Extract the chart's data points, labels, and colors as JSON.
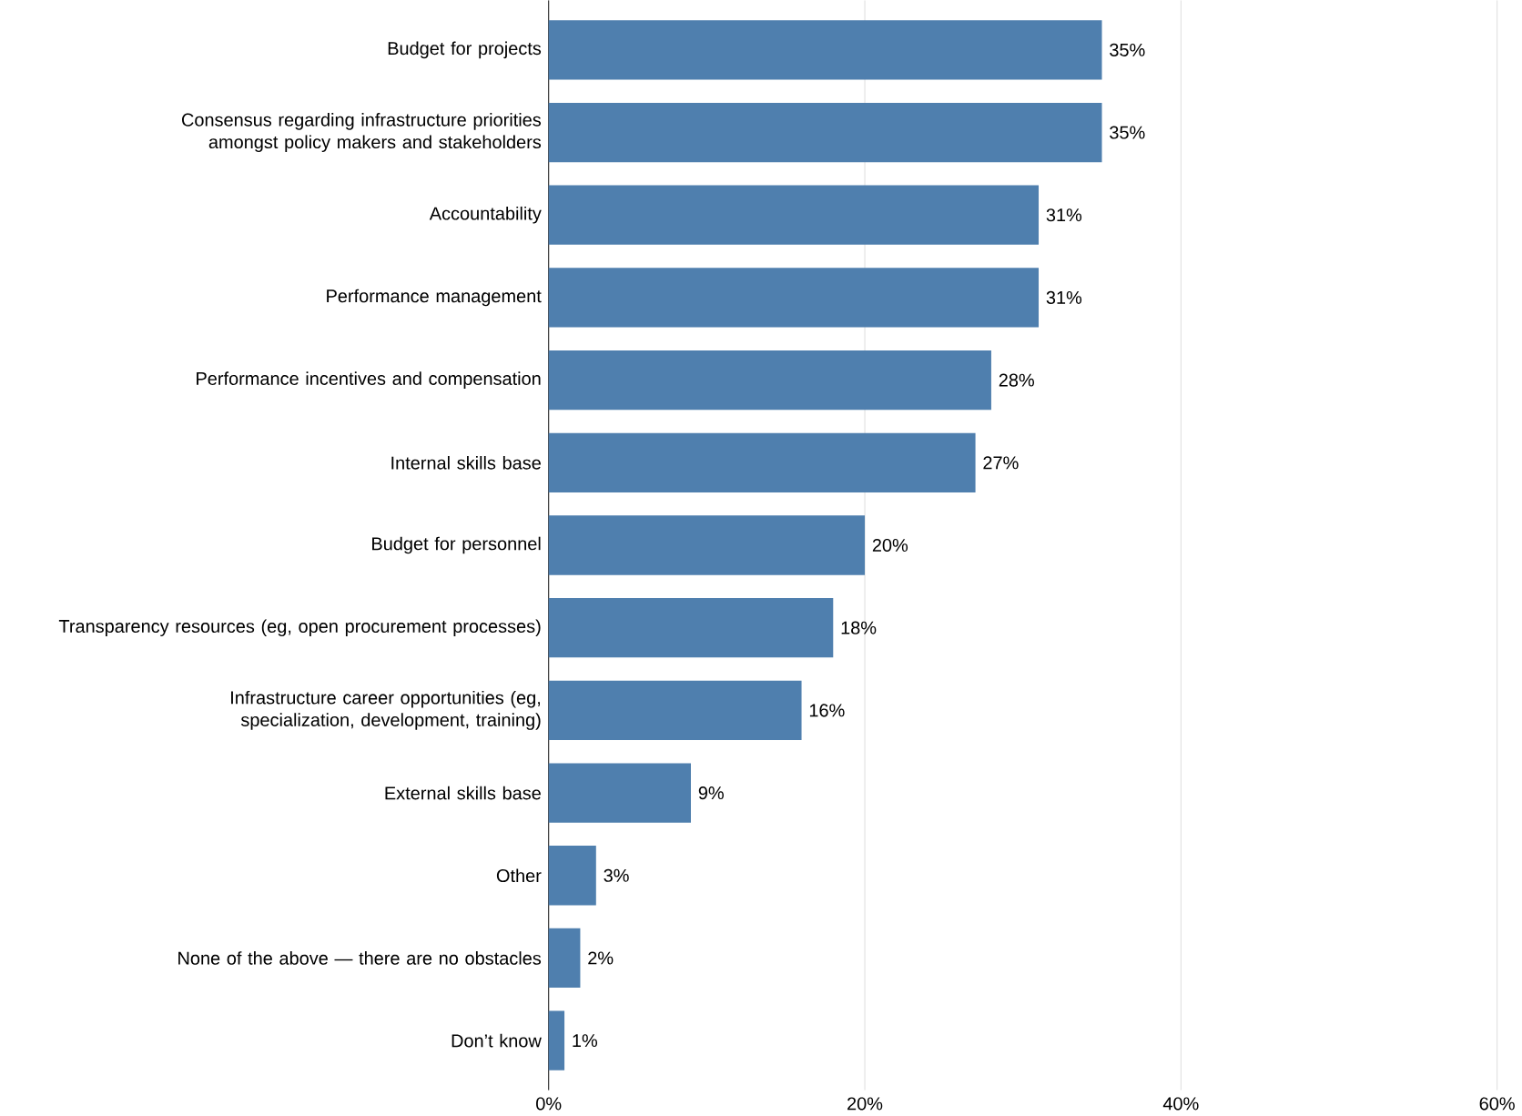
{
  "chart_data": {
    "type": "bar",
    "orientation": "horizontal",
    "categories": [
      "Budget for projects",
      "Consensus regarding infrastructure priorities amongst policy makers and stakeholders",
      "Accountability",
      "Performance management",
      "Performance incentives and compensation",
      "Internal skills base",
      "Budget for personnel",
      "Transparency resources (eg, open procurement processes)",
      "Infrastructure career opportunities (eg, specialization, development, training)",
      "External skills base",
      "Other",
      "None of the above — there are no obstacles",
      "Don’t know"
    ],
    "values": [
      35,
      35,
      31,
      31,
      28,
      27,
      20,
      18,
      16,
      9,
      3,
      2,
      1
    ],
    "value_labels": [
      "35%",
      "35%",
      "31%",
      "31%",
      "28%",
      "27%",
      "20%",
      "18%",
      "16%",
      "9%",
      "3%",
      "2%",
      "1%"
    ],
    "color": "#4f7fae",
    "xlim": [
      0,
      60
    ],
    "xticks": [
      {
        "value": 0,
        "label": "0%"
      },
      {
        "value": 20,
        "label": "20%"
      },
      {
        "value": 40,
        "label": "40%"
      },
      {
        "value": 60,
        "label": "60%"
      }
    ],
    "grid": "x"
  }
}
